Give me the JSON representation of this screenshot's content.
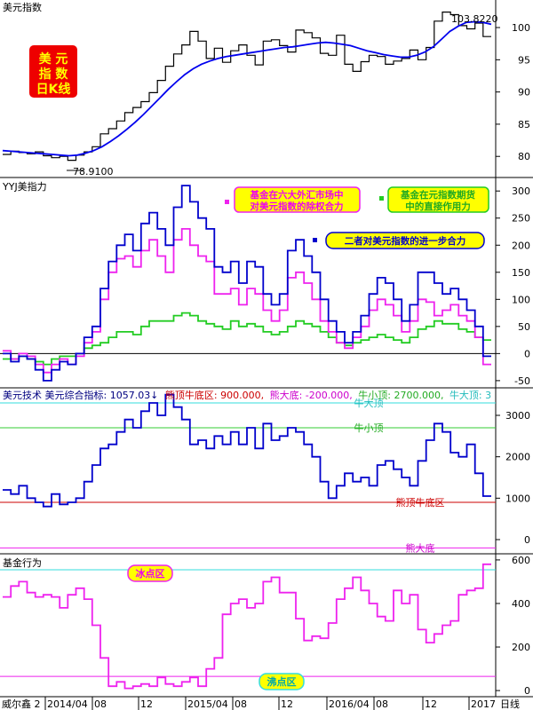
{
  "panels": {
    "p1": {
      "title": "美元指数",
      "badge": [
        "美 元",
        "指 数",
        "日K线"
      ],
      "peak_label": "103.8220",
      "low_label": "78.9100"
    },
    "p2": {
      "title": "YYJ美指力",
      "legend": [
        {
          "text": [
            "基金在六大外汇市场中",
            "对美元指数的除权合力"
          ]
        },
        {
          "text": [
            "基金在元指数期货",
            "中的直接作用力"
          ]
        },
        {
          "text": [
            "二者对美元指数的进一步合力"
          ]
        }
      ]
    },
    "p3": {
      "header": [
        {
          "text": "美元技术 美元综合指标: 1057.03↓"
        },
        {
          "text": "熊顶牛底区: 900.000,"
        },
        {
          "text": "熊大底: -200.000,"
        },
        {
          "text": "牛小顶: 2700.000,"
        },
        {
          "text": "牛大顶: 3"
        }
      ],
      "lines": [
        {
          "text": "牛大顶"
        },
        {
          "text": "牛小顶"
        },
        {
          "text": "熊顶牛底区"
        },
        {
          "text": "熊大底"
        }
      ]
    },
    "p4": {
      "title": "基金行为",
      "freeze_label": "冰点区",
      "boil_label": "沸点区"
    }
  },
  "footer": {
    "left": "威尔鑫 2",
    "right": "日线"
  },
  "colors": {
    "price": "#000000",
    "ma": "#0000ee",
    "magenta": "#ee22ee",
    "green": "#22cc22",
    "blue": "#0000cc",
    "red": "#cc0000",
    "cyan": "#33dddd",
    "lightgreen": "#33cc33"
  },
  "chart_data": [
    {
      "type": "line",
      "title": "美元指数",
      "ylim": [
        77,
        104
      ],
      "yticks": [
        80,
        85,
        90,
        95,
        100
      ],
      "x_ticks": [
        "2014/04",
        "08",
        "12",
        "2015/04",
        "08",
        "12",
        "2016/04",
        "08",
        "12",
        "2017"
      ],
      "series": [
        {
          "name": "price",
          "values": [
            80.3,
            80.8,
            80.6,
            80.4,
            80.7,
            80.1,
            79.8,
            80.0,
            79.4,
            80.2,
            80.7,
            81.5,
            83.5,
            84.3,
            85.5,
            86.8,
            87.6,
            88.5,
            89.9,
            91.8,
            94.0,
            95.9,
            97.3,
            99.4,
            97.9,
            95.2,
            96.8,
            94.6,
            96.4,
            97.3,
            95.7,
            94.2,
            97.9,
            98.1,
            97.2,
            96.2,
            99.6,
            99.2,
            98.4,
            96.0,
            95.7,
            98.8,
            94.3,
            93.2,
            94.7,
            95.7,
            95.5,
            94.3,
            94.8,
            95.2,
            96.5,
            95.0,
            96.9,
            101.0,
            102.4,
            102.0,
            100.3,
            99.8,
            100.7,
            98.6
          ]
        },
        {
          "name": "ma",
          "values": [
            80.9,
            80.8,
            80.7,
            80.6,
            80.5,
            80.4,
            80.3,
            80.2,
            80.1,
            80.2,
            80.5,
            80.9,
            81.5,
            82.3,
            83.2,
            84.2,
            85.3,
            86.5,
            87.8,
            89.1,
            90.4,
            91.6,
            92.7,
            93.6,
            94.3,
            94.8,
            95.2,
            95.5,
            95.7,
            95.9,
            96.1,
            96.3,
            96.5,
            96.7,
            96.9,
            97.0,
            97.2,
            97.4,
            97.6,
            97.7,
            97.6,
            97.4,
            97.2,
            96.8,
            96.4,
            96.1,
            95.8,
            95.6,
            95.4,
            95.4,
            95.7,
            96.2,
            97.0,
            98.2,
            99.4,
            100.2,
            100.8,
            100.9,
            100.8,
            100.5
          ]
        }
      ]
    },
    {
      "type": "line",
      "title": "YYJ美指力",
      "ylim": [
        -60,
        320
      ],
      "yticks": [
        -50,
        0,
        50,
        100,
        150,
        200,
        250,
        300
      ],
      "series": [
        {
          "name": "基金在六大外汇市场中对美元指数的除权合力",
          "values": [
            5,
            -10,
            0,
            -5,
            -20,
            -35,
            -20,
            -10,
            -20,
            -5,
            20,
            40,
            100,
            150,
            175,
            180,
            160,
            190,
            210,
            180,
            150,
            210,
            230,
            200,
            180,
            170,
            110,
            110,
            120,
            90,
            120,
            110,
            80,
            60,
            80,
            140,
            150,
            130,
            100,
            60,
            40,
            20,
            10,
            30,
            50,
            80,
            100,
            90,
            70,
            40,
            60,
            100,
            95,
            70,
            80,
            90,
            70,
            60,
            30,
            -20
          ]
        },
        {
          "name": "基金在元指数期货中的直接作用力",
          "values": [
            -10,
            -10,
            -5,
            -10,
            -15,
            -20,
            -10,
            -5,
            -5,
            0,
            10,
            15,
            20,
            30,
            40,
            40,
            35,
            50,
            60,
            60,
            60,
            70,
            75,
            70,
            60,
            55,
            50,
            45,
            60,
            50,
            55,
            50,
            40,
            35,
            40,
            50,
            60,
            55,
            50,
            40,
            30,
            20,
            15,
            20,
            25,
            30,
            35,
            30,
            25,
            20,
            30,
            45,
            50,
            60,
            55,
            55,
            45,
            40,
            30,
            25
          ]
        },
        {
          "name": "二者对美元指数的进一步合力",
          "values": [
            0,
            -15,
            -5,
            -10,
            -30,
            -50,
            -30,
            -15,
            -20,
            0,
            30,
            50,
            120,
            170,
            200,
            220,
            190,
            240,
            260,
            230,
            200,
            270,
            310,
            280,
            250,
            230,
            160,
            150,
            170,
            130,
            170,
            160,
            110,
            90,
            110,
            190,
            210,
            180,
            150,
            100,
            60,
            40,
            20,
            40,
            70,
            110,
            140,
            130,
            100,
            60,
            90,
            150,
            150,
            130,
            110,
            120,
            100,
            80,
            50,
            -5
          ]
        }
      ]
    },
    {
      "type": "line",
      "title": "美元综合指标",
      "ylim": [
        -300,
        3600
      ],
      "yticks": [
        0,
        1000,
        2000,
        3000
      ],
      "reference_lines": [
        {
          "name": "牛大顶",
          "value": 3300
        },
        {
          "name": "牛小顶",
          "value": 2700
        },
        {
          "name": "熊顶牛底区",
          "value": 900
        },
        {
          "name": "熊大底",
          "value": -200
        }
      ],
      "series": [
        {
          "name": "美元综合指标",
          "values": [
            1200,
            1100,
            1300,
            1000,
            900,
            800,
            1100,
            850,
            900,
            1000,
            1400,
            1800,
            2200,
            2300,
            2600,
            2900,
            2700,
            3100,
            3300,
            3000,
            3500,
            3200,
            2900,
            2300,
            2400,
            2200,
            2500,
            2300,
            2600,
            2300,
            2700,
            2200,
            2800,
            2400,
            2500,
            2700,
            2600,
            2300,
            2000,
            1400,
            1000,
            1300,
            1600,
            1400,
            1500,
            1300,
            1800,
            1900,
            1700,
            1500,
            1300,
            1900,
            2400,
            2800,
            2600,
            2100,
            2000,
            2300,
            1600,
            1050
          ]
        }
      ]
    },
    {
      "type": "line",
      "title": "基金行为",
      "ylim": [
        -20,
        620
      ],
      "yticks": [
        0,
        200,
        400,
        600
      ],
      "reference_lines": [
        {
          "name": "冰点区",
          "value": 555
        },
        {
          "name": "沸点区",
          "value": 65
        }
      ],
      "series": [
        {
          "name": "基金行为",
          "values": [
            430,
            480,
            500,
            450,
            430,
            440,
            430,
            380,
            440,
            470,
            420,
            300,
            150,
            20,
            40,
            10,
            20,
            30,
            20,
            60,
            30,
            20,
            40,
            60,
            20,
            100,
            150,
            350,
            400,
            420,
            380,
            400,
            500,
            520,
            450,
            450,
            330,
            230,
            250,
            240,
            310,
            420,
            470,
            520,
            460,
            400,
            340,
            320,
            460,
            400,
            440,
            280,
            220,
            260,
            300,
            320,
            440,
            460,
            470,
            580
          ]
        }
      ]
    }
  ]
}
